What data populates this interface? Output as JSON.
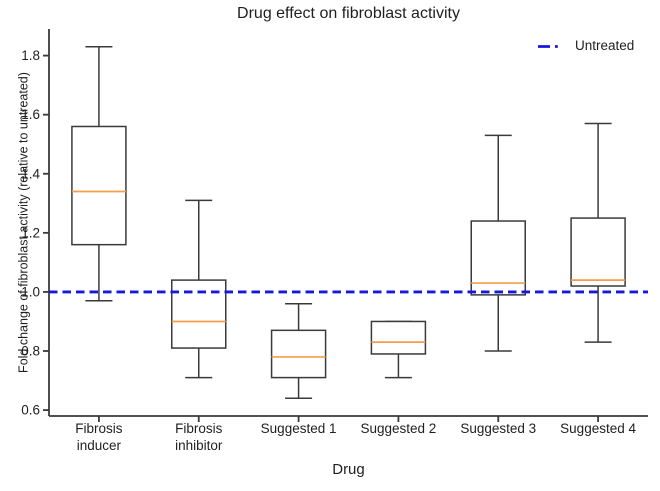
{
  "title": "Drug effect on fibroblast activity",
  "colors": {
    "background": "#ffffff",
    "axis": "#3a3a3a",
    "text": "#1f1f1f",
    "box_stroke": "#3a3a3a",
    "median": "#f49d4c",
    "reference": "#1717dd"
  },
  "legend": {
    "label": "Untreated",
    "marker": "dashed-line-icon",
    "position": "upper right"
  },
  "chart_data": {
    "type": "boxplot",
    "title": "Drug effect on fibroblast activity",
    "xlabel": "Drug",
    "ylabel": "Fold change of fibroblast activity (relative to untreated)",
    "ylim": [
      0.58,
      1.89
    ],
    "yticks": [
      0.6,
      0.8,
      1.0,
      1.2,
      1.4,
      1.6,
      1.8
    ],
    "grid": false,
    "legend_position": "upper right",
    "reference_line": {
      "label": "Untreated",
      "value": 1.0,
      "style": "dashed",
      "color": "#1717dd"
    },
    "categories": [
      "Fibrosis inducer",
      "Fibrosis inhibitor",
      "Suggested 1",
      "Suggested 2",
      "Suggested 3",
      "Suggested 4"
    ],
    "x_tick_lines": [
      [
        "Fibrosis",
        "inducer"
      ],
      [
        "Fibrosis",
        "inhibitor"
      ],
      [
        "Suggested 1"
      ],
      [
        "Suggested 2"
      ],
      [
        "Suggested 3"
      ],
      [
        "Suggested 4"
      ]
    ],
    "boxes": [
      {
        "label": "Fibrosis inducer",
        "whisker_low": 0.97,
        "q1": 1.16,
        "median": 1.34,
        "q3": 1.56,
        "whisker_high": 1.83
      },
      {
        "label": "Fibrosis inhibitor",
        "whisker_low": 0.71,
        "q1": 0.81,
        "median": 0.9,
        "q3": 1.04,
        "whisker_high": 1.31
      },
      {
        "label": "Suggested 1",
        "whisker_low": 0.64,
        "q1": 0.71,
        "median": 0.78,
        "q3": 0.87,
        "whisker_high": 0.96
      },
      {
        "label": "Suggested 2",
        "whisker_low": 0.71,
        "q1": 0.79,
        "median": 0.83,
        "q3": 0.9,
        "whisker_high": 0.9
      },
      {
        "label": "Suggested 3",
        "whisker_low": 0.8,
        "q1": 0.99,
        "median": 1.03,
        "q3": 1.24,
        "whisker_high": 1.53
      },
      {
        "label": "Suggested 4",
        "whisker_low": 0.83,
        "q1": 1.02,
        "median": 1.04,
        "q3": 1.25,
        "whisker_high": 1.57
      }
    ]
  }
}
